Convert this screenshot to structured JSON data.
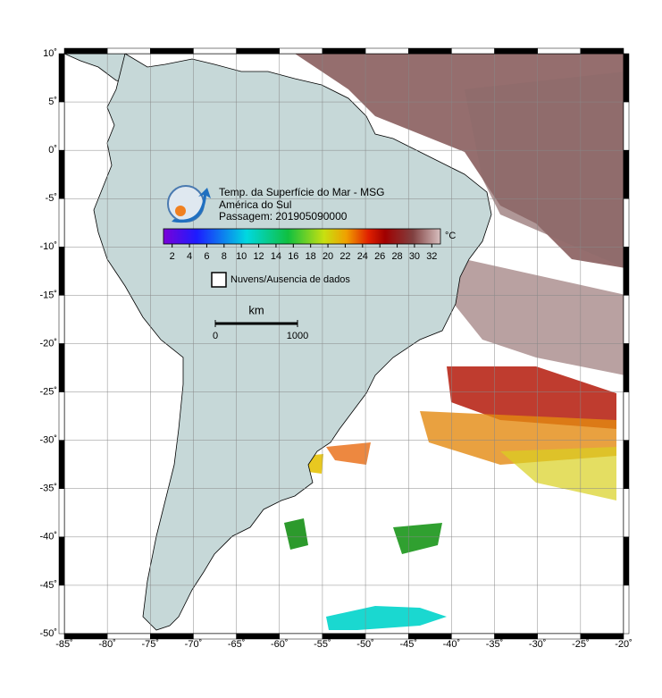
{
  "map": {
    "title_lines": [
      "Temp. da Superfície do Mar - MSG",
      "América do Sul",
      "Passagem: 201905090000"
    ],
    "colorbar": {
      "range": [
        1,
        33
      ],
      "ticks": [
        2,
        4,
        6,
        8,
        10,
        12,
        14,
        16,
        18,
        20,
        22,
        24,
        26,
        28,
        30,
        32
      ],
      "unit": "°C"
    },
    "legend": "Nuvens/Ausencia de dados",
    "scale_bar": {
      "unit": "km",
      "start": "0",
      "end": "1000"
    },
    "xlim": [
      -85,
      -20
    ],
    "ylim": [
      -50,
      10
    ],
    "xticks": [
      {
        "value": -85,
        "label": "-85˚"
      },
      {
        "value": -80,
        "label": "-80˚"
      },
      {
        "value": -75,
        "label": "-75˚"
      },
      {
        "value": -70,
        "label": "-70˚"
      },
      {
        "value": -65,
        "label": "-65˚"
      },
      {
        "value": -60,
        "label": "-60˚"
      },
      {
        "value": -55,
        "label": "-55˚"
      },
      {
        "value": -50,
        "label": "-50˚"
      },
      {
        "value": -45,
        "label": "-45˚"
      },
      {
        "value": -40,
        "label": "-40˚"
      },
      {
        "value": -35,
        "label": "-35˚"
      },
      {
        "value": -30,
        "label": "-30˚"
      },
      {
        "value": -25,
        "label": "-25˚"
      },
      {
        "value": -20,
        "label": "-20˚"
      }
    ],
    "yticks": [
      {
        "value": 10,
        "label": "10˚"
      },
      {
        "value": 5,
        "label": "5˚"
      },
      {
        "value": 0,
        "label": "0˚"
      },
      {
        "value": -5,
        "label": "-5˚"
      },
      {
        "value": -10,
        "label": "-10˚"
      },
      {
        "value": -15,
        "label": "-15˚"
      },
      {
        "value": -20,
        "label": "-20˚"
      },
      {
        "value": -25,
        "label": "-25˚"
      },
      {
        "value": -30,
        "label": "-30˚"
      },
      {
        "value": -35,
        "label": "-35˚"
      },
      {
        "value": -40,
        "label": "-40˚"
      },
      {
        "value": -45,
        "label": "-45˚"
      },
      {
        "value": -50,
        "label": "-50˚"
      }
    ]
  }
}
